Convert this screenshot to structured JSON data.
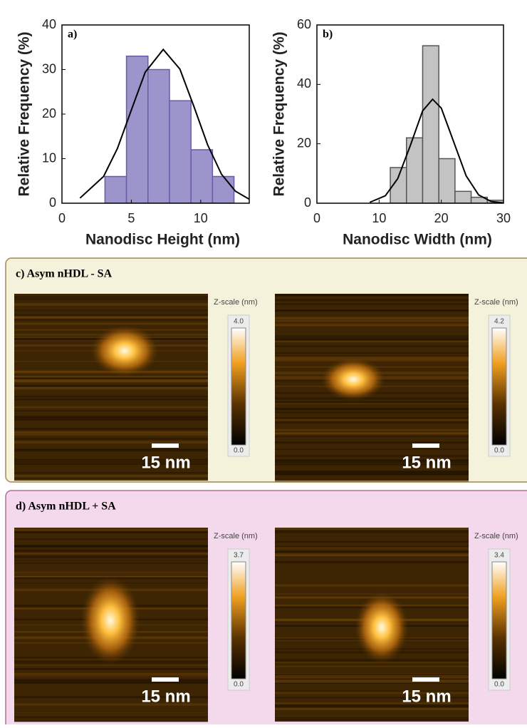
{
  "chart_data": [
    {
      "type": "histogram",
      "panel_label": "a)",
      "xlabel": "Nanodisc Height (nm)",
      "ylabel": "Relative Frequency (%)",
      "bins": [
        3.1,
        4.65,
        6.2,
        7.75,
        9.3,
        10.85,
        12.4
      ],
      "values": [
        6,
        33,
        30,
        23,
        12,
        6
      ],
      "color": "#9c95cb",
      "edge_color": "#6a5aa8",
      "fit": {
        "color": "#000000",
        "x": [
          1.3,
          3,
          4,
          5,
          6,
          7.3,
          8.5,
          9.5,
          10.5,
          11.5,
          12.5,
          13.5
        ],
        "y": [
          1.15,
          6.0,
          12.3,
          20.9,
          29.4,
          34.5,
          30.1,
          21.8,
          13.1,
          6.5,
          2.7,
          0.9
        ]
      },
      "xlim": [
        0,
        13.5
      ],
      "xticks": [
        0,
        5,
        10
      ],
      "ylim": [
        0,
        40
      ],
      "yticks": [
        0,
        10,
        20,
        30,
        40
      ]
    },
    {
      "type": "histogram",
      "panel_label": "b)",
      "xlabel": "Nanodisc Width (nm)",
      "ylabel": "Relative Frequency (%)",
      "bins": [
        11.8,
        14.4,
        17.0,
        19.6,
        22.2,
        24.8,
        27.4,
        30.0
      ],
      "values": [
        12,
        22,
        53,
        15,
        4,
        2,
        1
      ],
      "color": "#c3c3c3",
      "edge_color": "#555555",
      "fit": {
        "color": "#000000",
        "x": [
          8.5,
          11,
          13,
          15,
          17,
          18.6,
          20,
          22,
          24,
          26,
          28,
          30
        ],
        "y": [
          0.3,
          2.5,
          8.3,
          19.3,
          31.1,
          35,
          32.0,
          20.6,
          9.2,
          2.8,
          0.6,
          0.1
        ]
      },
      "xlim": [
        0,
        30
      ],
      "xticks": [
        0,
        10,
        20,
        30
      ],
      "ylim": [
        0,
        60
      ],
      "yticks": [
        0,
        20,
        40,
        60
      ]
    }
  ],
  "afm_panels": [
    {
      "label": "c) Asym nHDL - SA",
      "images": [
        {
          "scale_bar": "15 nm",
          "z_title": "Z-scale (nm)",
          "z_max": "4.0",
          "z_min": "0.0"
        },
        {
          "scale_bar": "15 nm",
          "z_title": "Z-scale (nm)",
          "z_max": "4.2",
          "z_min": "0.0"
        }
      ]
    },
    {
      "label": "d) Asym nHDL + SA",
      "images": [
        {
          "scale_bar": "15 nm",
          "z_title": "Z-scale (nm)",
          "z_max": "3.7",
          "z_min": "0.0"
        },
        {
          "scale_bar": "15 nm",
          "z_title": "Z-scale (nm)",
          "z_max": "3.4",
          "z_min": "0.0"
        }
      ]
    }
  ]
}
